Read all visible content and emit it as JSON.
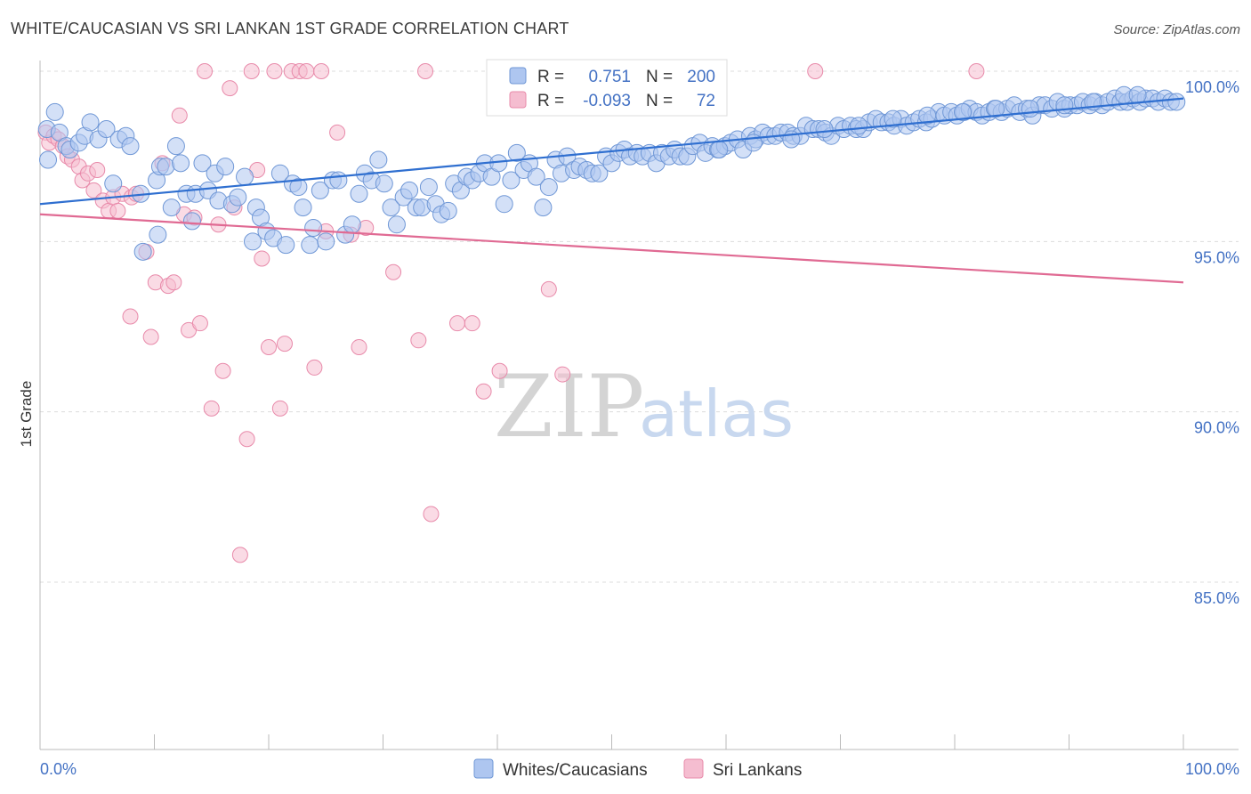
{
  "title": "WHITE/CAUCASIAN VS SRI LANKAN 1ST GRADE CORRELATION CHART",
  "source": "Source: ZipAtlas.com",
  "watermark": {
    "zip": "ZIP",
    "atlas": "atlas"
  },
  "colors": {
    "blue_fill": "#aec6f0",
    "blue_stroke": "#6f97d6",
    "blue_line": "#2f6fd0",
    "pink_fill": "#f5bdd0",
    "pink_stroke": "#e88aaa",
    "pink_line": "#e06a93",
    "tick_text": "#4472c4",
    "grid": "#dcdcdc"
  },
  "legend": {
    "rows": [
      {
        "r_label": "R =",
        "r_value": "0.751",
        "n_label": "N =",
        "n_value": "200"
      },
      {
        "r_label": "R =",
        "r_value": "-0.093",
        "n_label": "N =",
        "n_value": "72"
      }
    ]
  },
  "chart_data": {
    "type": "scatter",
    "xlabel": "",
    "ylabel": "1st Grade",
    "xlim": [
      0,
      100
    ],
    "ylim": [
      80.5,
      100.3
    ],
    "x_tick_labels": [
      "0.0%",
      "100.0%"
    ],
    "y_ticks": [
      85,
      90,
      95,
      100
    ],
    "y_tick_labels": [
      "85.0%",
      "90.0%",
      "95.0%",
      "100.0%"
    ],
    "grid": true,
    "legend_position": "top-center",
    "series": [
      {
        "name": "Whites/Caucasians",
        "color": "blue",
        "trendline": {
          "x": [
            0,
            100
          ],
          "y": [
            96.1,
            99.2
          ]
        },
        "points": [
          [
            0.6,
            98.3
          ],
          [
            0.7,
            97.4
          ],
          [
            1.3,
            98.8
          ],
          [
            1.7,
            98.2
          ],
          [
            2.3,
            97.8
          ],
          [
            2.6,
            97.7
          ],
          [
            3.4,
            97.9
          ],
          [
            3.9,
            98.1
          ],
          [
            4.4,
            98.5
          ],
          [
            5.1,
            98.0
          ],
          [
            5.8,
            98.3
          ],
          [
            6.4,
            96.7
          ],
          [
            6.9,
            98.0
          ],
          [
            7.5,
            98.1
          ],
          [
            7.9,
            97.8
          ],
          [
            8.8,
            96.4
          ],
          [
            9.0,
            94.7
          ],
          [
            10.2,
            96.8
          ],
          [
            10.5,
            97.2
          ],
          [
            10.3,
            95.2
          ],
          [
            11.0,
            97.2
          ],
          [
            11.5,
            96.0
          ],
          [
            11.9,
            97.8
          ],
          [
            12.3,
            97.3
          ],
          [
            12.8,
            96.4
          ],
          [
            13.3,
            95.6
          ],
          [
            13.6,
            96.4
          ],
          [
            14.2,
            97.3
          ],
          [
            14.7,
            96.5
          ],
          [
            15.3,
            97.0
          ],
          [
            15.6,
            96.2
          ],
          [
            16.2,
            97.2
          ],
          [
            16.8,
            96.1
          ],
          [
            17.3,
            96.3
          ],
          [
            17.9,
            96.9
          ],
          [
            18.6,
            95.0
          ],
          [
            18.9,
            96.0
          ],
          [
            19.3,
            95.7
          ],
          [
            19.8,
            95.3
          ],
          [
            20.4,
            95.1
          ],
          [
            21.0,
            97.0
          ],
          [
            21.5,
            94.9
          ],
          [
            22.1,
            96.7
          ],
          [
            22.6,
            96.6
          ],
          [
            23.0,
            96.0
          ],
          [
            23.6,
            94.9
          ],
          [
            23.9,
            95.4
          ],
          [
            24.5,
            96.5
          ],
          [
            25.0,
            95.0
          ],
          [
            25.6,
            96.8
          ],
          [
            26.1,
            96.8
          ],
          [
            26.7,
            95.2
          ],
          [
            27.3,
            95.5
          ],
          [
            27.9,
            96.4
          ],
          [
            28.4,
            97.0
          ],
          [
            29.0,
            96.8
          ],
          [
            29.6,
            97.4
          ],
          [
            30.1,
            96.7
          ],
          [
            30.7,
            96.0
          ],
          [
            31.2,
            95.5
          ],
          [
            31.8,
            96.3
          ],
          [
            32.3,
            96.5
          ],
          [
            32.9,
            96.0
          ],
          [
            33.4,
            96.0
          ],
          [
            34.0,
            96.6
          ],
          [
            34.6,
            96.1
          ],
          [
            35.1,
            95.8
          ],
          [
            35.7,
            95.9
          ],
          [
            36.2,
            96.7
          ],
          [
            36.8,
            96.5
          ],
          [
            37.3,
            96.9
          ],
          [
            37.8,
            96.8
          ],
          [
            38.4,
            97.0
          ],
          [
            38.9,
            97.3
          ],
          [
            39.5,
            96.9
          ],
          [
            40.1,
            97.3
          ],
          [
            40.6,
            96.1
          ],
          [
            41.2,
            96.8
          ],
          [
            41.7,
            97.6
          ],
          [
            42.3,
            97.1
          ],
          [
            42.8,
            97.3
          ],
          [
            43.4,
            96.9
          ],
          [
            44.0,
            96.0
          ],
          [
            44.5,
            96.6
          ],
          [
            45.1,
            97.4
          ],
          [
            45.6,
            97.0
          ],
          [
            46.1,
            97.5
          ],
          [
            46.7,
            97.1
          ],
          [
            47.2,
            97.2
          ],
          [
            47.8,
            97.1
          ],
          [
            48.3,
            97.0
          ],
          [
            48.9,
            97.0
          ],
          [
            49.5,
            97.5
          ],
          [
            50.0,
            97.3
          ],
          [
            50.6,
            97.6
          ],
          [
            51.1,
            97.7
          ],
          [
            51.6,
            97.5
          ],
          [
            52.2,
            97.6
          ],
          [
            52.7,
            97.5
          ],
          [
            53.3,
            97.6
          ],
          [
            53.9,
            97.3
          ],
          [
            54.4,
            97.6
          ],
          [
            55.0,
            97.5
          ],
          [
            55.5,
            97.7
          ],
          [
            56.0,
            97.5
          ],
          [
            56.6,
            97.5
          ],
          [
            57.1,
            97.8
          ],
          [
            57.7,
            97.9
          ],
          [
            58.2,
            97.6
          ],
          [
            58.8,
            97.8
          ],
          [
            59.3,
            97.7
          ],
          [
            59.9,
            97.8
          ],
          [
            60.4,
            97.9
          ],
          [
            61.0,
            98.0
          ],
          [
            61.5,
            97.7
          ],
          [
            62.1,
            98.1
          ],
          [
            62.6,
            98.0
          ],
          [
            63.2,
            98.2
          ],
          [
            63.7,
            98.1
          ],
          [
            64.3,
            98.1
          ],
          [
            64.8,
            98.2
          ],
          [
            65.4,
            98.2
          ],
          [
            65.9,
            98.1
          ],
          [
            66.5,
            98.1
          ],
          [
            67.0,
            98.4
          ],
          [
            67.6,
            98.3
          ],
          [
            68.1,
            98.3
          ],
          [
            68.7,
            98.2
          ],
          [
            69.2,
            98.1
          ],
          [
            69.8,
            98.4
          ],
          [
            70.3,
            98.3
          ],
          [
            70.9,
            98.4
          ],
          [
            71.4,
            98.3
          ],
          [
            72.0,
            98.3
          ],
          [
            72.5,
            98.5
          ],
          [
            73.1,
            98.6
          ],
          [
            73.6,
            98.5
          ],
          [
            74.2,
            98.5
          ],
          [
            74.7,
            98.4
          ],
          [
            75.3,
            98.6
          ],
          [
            75.8,
            98.4
          ],
          [
            76.4,
            98.5
          ],
          [
            76.9,
            98.6
          ],
          [
            77.5,
            98.5
          ],
          [
            78.0,
            98.6
          ],
          [
            78.6,
            98.8
          ],
          [
            79.1,
            98.7
          ],
          [
            79.7,
            98.8
          ],
          [
            80.2,
            98.7
          ],
          [
            80.8,
            98.8
          ],
          [
            81.3,
            98.9
          ],
          [
            81.9,
            98.8
          ],
          [
            82.4,
            98.7
          ],
          [
            83.0,
            98.8
          ],
          [
            83.5,
            98.9
          ],
          [
            84.1,
            98.8
          ],
          [
            84.6,
            98.9
          ],
          [
            85.2,
            99.0
          ],
          [
            85.7,
            98.8
          ],
          [
            86.3,
            98.9
          ],
          [
            86.8,
            98.7
          ],
          [
            87.4,
            99.0
          ],
          [
            87.9,
            99.0
          ],
          [
            88.5,
            98.9
          ],
          [
            89.0,
            99.1
          ],
          [
            89.6,
            98.9
          ],
          [
            90.1,
            99.0
          ],
          [
            90.7,
            99.0
          ],
          [
            91.2,
            99.1
          ],
          [
            91.8,
            99.0
          ],
          [
            92.3,
            99.1
          ],
          [
            92.9,
            99.0
          ],
          [
            93.4,
            99.1
          ],
          [
            94.0,
            99.2
          ],
          [
            94.5,
            99.1
          ],
          [
            95.1,
            99.1
          ],
          [
            95.6,
            99.2
          ],
          [
            96.2,
            99.1
          ],
          [
            96.7,
            99.2
          ],
          [
            97.3,
            99.2
          ],
          [
            97.8,
            99.1
          ],
          [
            98.4,
            99.2
          ],
          [
            98.9,
            99.1
          ],
          [
            99.4,
            99.1
          ],
          [
            94.8,
            99.3
          ],
          [
            96.0,
            99.3
          ],
          [
            92.1,
            99.1
          ],
          [
            89.6,
            99.0
          ],
          [
            86.6,
            98.9
          ],
          [
            83.6,
            98.9
          ],
          [
            80.7,
            98.8
          ],
          [
            77.6,
            98.7
          ],
          [
            74.6,
            98.6
          ],
          [
            71.6,
            98.4
          ],
          [
            68.6,
            98.3
          ],
          [
            65.7,
            98.0
          ],
          [
            62.4,
            97.9
          ],
          [
            59.4,
            97.7
          ]
        ]
      },
      {
        "name": "Sri Lankans",
        "color": "pink",
        "trendline": {
          "x": [
            0,
            100
          ],
          "y": [
            95.8,
            93.8
          ]
        },
        "points": [
          [
            0.5,
            98.2
          ],
          [
            0.8,
            97.9
          ],
          [
            1.2,
            98.1
          ],
          [
            1.6,
            98.0
          ],
          [
            2.0,
            97.8
          ],
          [
            2.4,
            97.5
          ],
          [
            2.8,
            97.4
          ],
          [
            3.4,
            97.2
          ],
          [
            3.7,
            96.8
          ],
          [
            4.2,
            97.0
          ],
          [
            4.7,
            96.5
          ],
          [
            5.0,
            97.1
          ],
          [
            5.5,
            96.2
          ],
          [
            6.0,
            95.9
          ],
          [
            6.4,
            96.3
          ],
          [
            6.8,
            95.9
          ],
          [
            7.2,
            96.4
          ],
          [
            8.0,
            96.3
          ],
          [
            8.4,
            96.4
          ],
          [
            7.9,
            92.8
          ],
          [
            9.3,
            94.7
          ],
          [
            9.7,
            92.2
          ],
          [
            10.1,
            93.8
          ],
          [
            10.7,
            97.3
          ],
          [
            11.2,
            93.7
          ],
          [
            11.7,
            93.8
          ],
          [
            12.2,
            98.7
          ],
          [
            12.6,
            95.8
          ],
          [
            13.0,
            92.4
          ],
          [
            13.5,
            95.7
          ],
          [
            14.0,
            92.6
          ],
          [
            14.4,
            100.0
          ],
          [
            15.0,
            90.1
          ],
          [
            15.6,
            95.5
          ],
          [
            16.0,
            91.2
          ],
          [
            16.6,
            99.5
          ],
          [
            17.0,
            96.0
          ],
          [
            17.5,
            85.8
          ],
          [
            18.1,
            89.2
          ],
          [
            18.5,
            100.0
          ],
          [
            19.0,
            97.1
          ],
          [
            19.4,
            94.5
          ],
          [
            20.0,
            91.9
          ],
          [
            20.5,
            100.0
          ],
          [
            21.0,
            90.1
          ],
          [
            21.4,
            92.0
          ],
          [
            22.0,
            100.0
          ],
          [
            22.7,
            100.0
          ],
          [
            23.3,
            100.0
          ],
          [
            24.0,
            91.3
          ],
          [
            24.6,
            100.0
          ],
          [
            25.0,
            95.3
          ],
          [
            26.0,
            98.2
          ],
          [
            27.2,
            95.2
          ],
          [
            27.9,
            91.9
          ],
          [
            28.5,
            95.4
          ],
          [
            30.9,
            94.1
          ],
          [
            33.1,
            92.1
          ],
          [
            33.7,
            100.0
          ],
          [
            34.2,
            87.0
          ],
          [
            36.5,
            92.6
          ],
          [
            37.8,
            92.6
          ],
          [
            38.8,
            90.6
          ],
          [
            40.2,
            91.2
          ],
          [
            44.5,
            93.6
          ],
          [
            45.7,
            91.1
          ],
          [
            67.8,
            100.0
          ],
          [
            81.9,
            100.0
          ]
        ]
      }
    ]
  },
  "bottom_legend": [
    {
      "label": "Whites/Caucasians",
      "color": "blue"
    },
    {
      "label": "Sri Lankans",
      "color": "pink"
    }
  ]
}
